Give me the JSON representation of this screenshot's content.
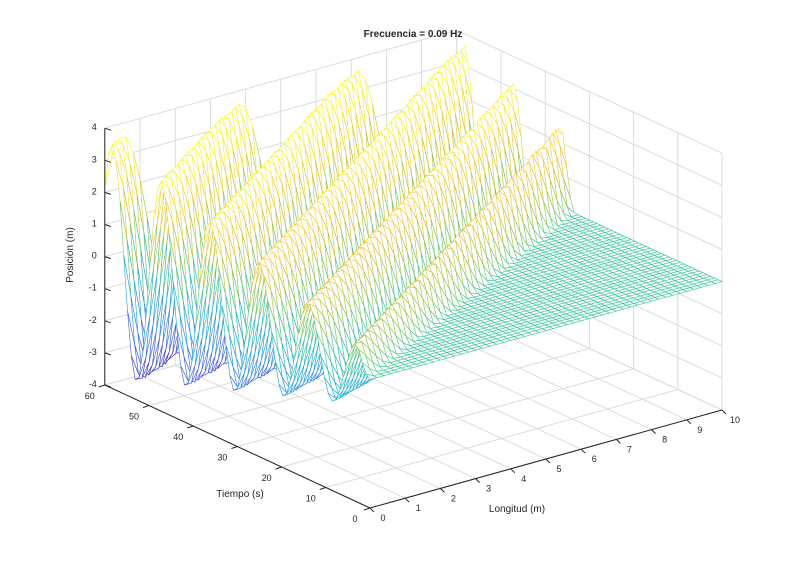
{
  "chart_data": {
    "type": "mesh",
    "title": "Frecuencia = 0.09 Hz",
    "xlabel": "Longitud (m)",
    "ylabel": "Tiempo (s)",
    "zlabel": "Posición (m)",
    "xlim": [
      0,
      10
    ],
    "ylim": [
      0,
      60
    ],
    "zlim": [
      -4,
      4
    ],
    "xticks": [
      "0",
      "1",
      "2",
      "3",
      "4",
      "5",
      "6",
      "7",
      "8",
      "9",
      "10"
    ],
    "yticks": [
      "0",
      "10",
      "20",
      "30",
      "40",
      "50",
      "60"
    ],
    "zticks": [
      "-4",
      "-3",
      "-2",
      "-1",
      "0",
      "1",
      "2",
      "3",
      "4"
    ],
    "grid": true,
    "colormap": "parula",
    "frequency_hz": 0.09
  }
}
